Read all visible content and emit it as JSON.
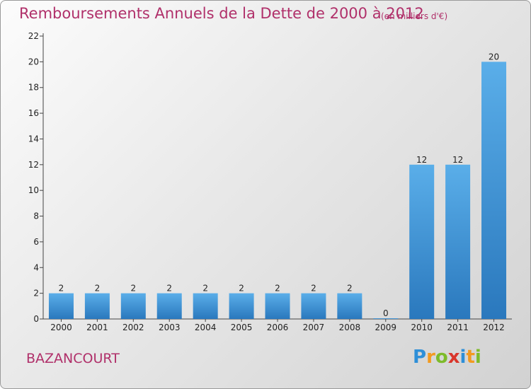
{
  "title": "Remboursements Annuels de la Dette de 2000 à 2012",
  "subtitle": "(en milliers d'€)",
  "commune": "BAZANCOURT",
  "logo": {
    "letters": [
      "P",
      "r",
      "o",
      "x",
      "i",
      "t",
      "i"
    ],
    "colors": [
      "#2e8fd8",
      "#f29a1f",
      "#7dbb2a",
      "#d9362b",
      "#2e8fd8",
      "#f29a1f",
      "#7dbb2a"
    ]
  },
  "colors": {
    "bar_top": "#5aaee9",
    "bar_bottom": "#2a78bd",
    "title": "#b0306a",
    "axis": "#444444"
  },
  "chart_data": {
    "type": "bar",
    "categories": [
      "2000",
      "2001",
      "2002",
      "2003",
      "2004",
      "2005",
      "2006",
      "2007",
      "2008",
      "2009",
      "2010",
      "2011",
      "2012"
    ],
    "values": [
      2,
      2,
      2,
      2,
      2,
      2,
      2,
      2,
      2,
      0,
      12,
      12,
      20
    ],
    "data_labels": [
      "2",
      "2",
      "2",
      "2",
      "2",
      "2",
      "2",
      "2",
      "2",
      "0",
      "12",
      "12",
      "20"
    ],
    "ylim": [
      0,
      22
    ],
    "yticks": [
      "0",
      "2",
      "4",
      "6",
      "8",
      "10",
      "12",
      "14",
      "16",
      "18",
      "20",
      "22"
    ],
    "grid": false,
    "legend": "none"
  }
}
